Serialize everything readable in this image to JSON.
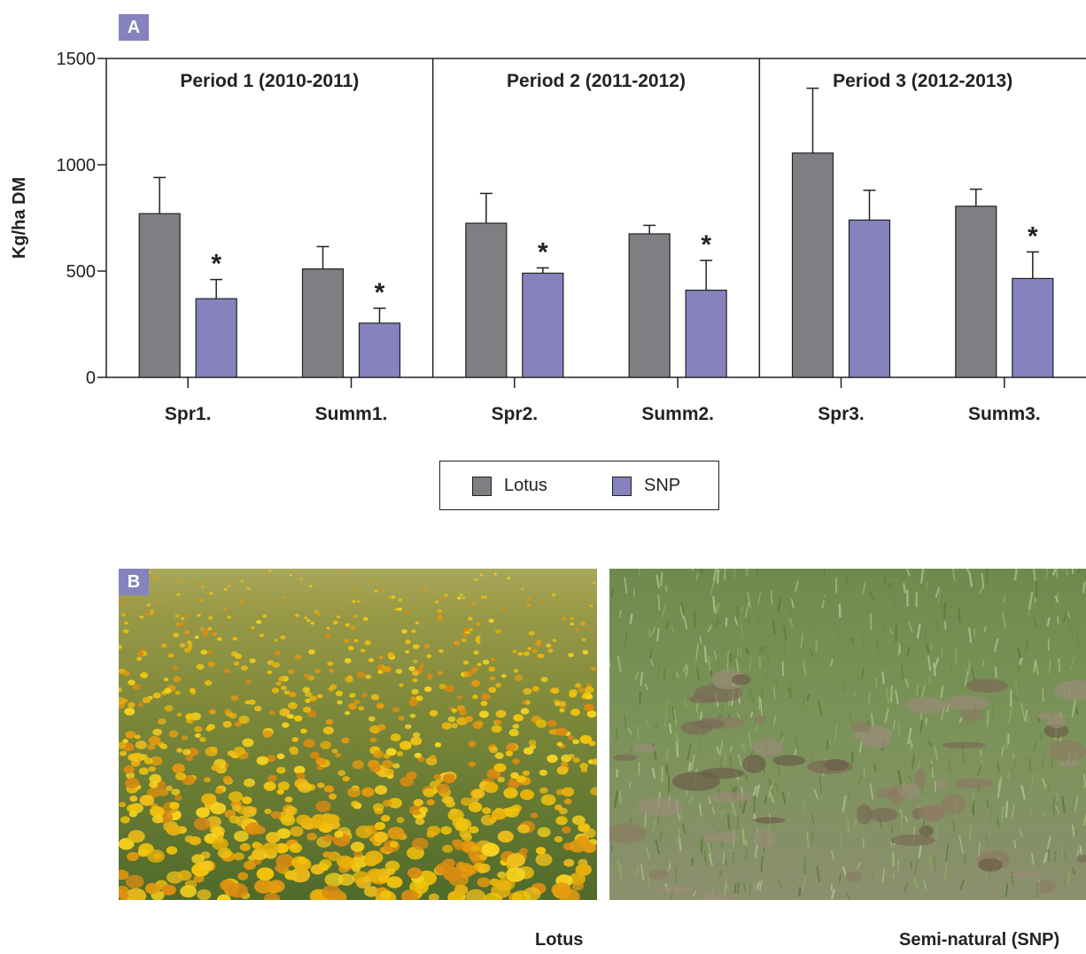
{
  "figure": {
    "panel_a_label": "A",
    "panel_b_label": "B",
    "photo_captions": [
      "Lotus",
      "Semi-natural (SNP)"
    ]
  },
  "colors": {
    "lotus": "#7e7f82",
    "snp": "#8582bd",
    "panel_tag": "#8582bd"
  },
  "chart_data": {
    "type": "bar",
    "title": "",
    "xlabel": "",
    "ylabel": "Kg/ha DM",
    "ylim": [
      0,
      1500
    ],
    "yticks": [
      0,
      500,
      1000,
      1500
    ],
    "grid": false,
    "legend_position": "bottom-center",
    "categories": [
      "Spr1.",
      "Summ1.",
      "Spr2.",
      "Summ2.",
      "Spr3.",
      "Summ3."
    ],
    "periods": [
      {
        "label": "Period 1 (2010-2011)",
        "categories": [
          "Spr1.",
          "Summ1."
        ]
      },
      {
        "label": "Period 2 (2011-2012)",
        "categories": [
          "Spr2.",
          "Summ2."
        ]
      },
      {
        "label": "Period 3 (2012-2013)",
        "categories": [
          "Spr3.",
          "Summ3."
        ]
      }
    ],
    "series": [
      {
        "name": "Lotus",
        "values": [
          770,
          510,
          725,
          675,
          1055,
          805
        ],
        "errors": [
          170,
          105,
          140,
          40,
          305,
          80
        ]
      },
      {
        "name": "SNP",
        "values": [
          370,
          255,
          490,
          410,
          740,
          465
        ],
        "errors": [
          90,
          70,
          25,
          140,
          140,
          125
        ]
      }
    ],
    "significance": [
      true,
      true,
      true,
      true,
      false,
      true
    ],
    "significance_marker": "*"
  }
}
